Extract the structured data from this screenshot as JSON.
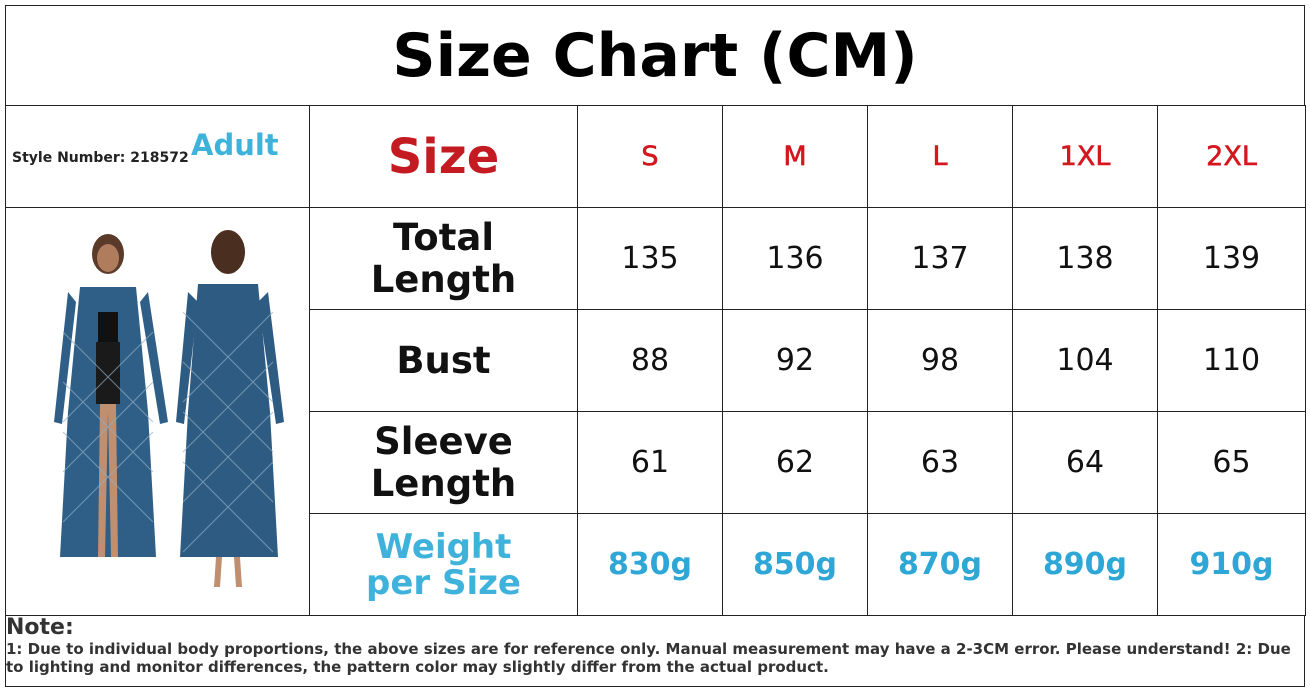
{
  "title": "Size Chart (CM)",
  "style_number": "Style Number: 218572",
  "audience": "Adult",
  "table": {
    "header": [
      "Size",
      "S",
      "M",
      "L",
      "1XL",
      "2XL"
    ],
    "rows": [
      [
        "Total Length",
        135,
        136,
        137,
        138,
        139
      ],
      [
        "Bust",
        88,
        92,
        98,
        104,
        110
      ],
      [
        "Sleeve Length",
        61,
        62,
        63,
        64,
        65
      ],
      [
        "Weight per Size",
        "830g",
        "850g",
        "870g",
        "890g",
        "910g"
      ]
    ]
  },
  "note": {
    "label": "Note:",
    "text": "1: Due to individual body proportions, the above sizes are for reference only. Manual measurement may have a 2-3CM error. Please understand! 2: Due to lighting and monitor differences, the pattern color may slightly differ from the actual product."
  }
}
